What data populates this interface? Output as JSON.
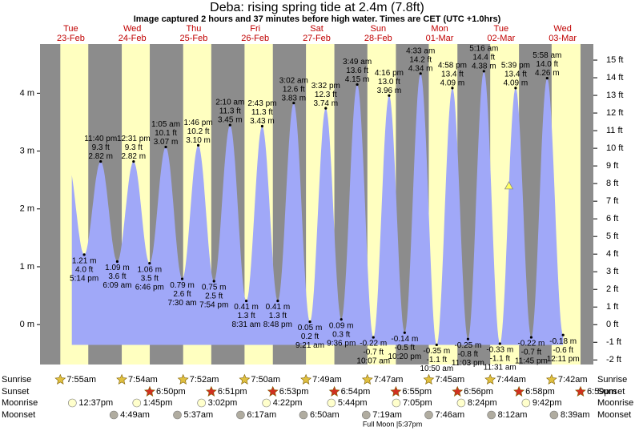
{
  "chart_data": {
    "type": "tide",
    "title": "Deba: rising  spring tide at 2.4m (7.8ft)",
    "subtitle": "Image captured 2 hours and 37 minutes before high water. Times are CET (UTC +1.0hrs)",
    "current_height": 2.4,
    "ylim": [
      -0.69,
      4.85
    ],
    "yticks": [
      {
        "value": 0,
        "label": "0 m"
      },
      {
        "value": 1,
        "label": "1 m"
      },
      {
        "value": 2,
        "label": "2 m"
      },
      {
        "value": 3,
        "label": "3 m"
      },
      {
        "value": 4,
        "label": "4 m"
      }
    ],
    "y2lim": [
      -2.26,
      15.91
    ],
    "y2ticks": [
      {
        "value": -2,
        "label": "-2 ft"
      },
      {
        "value": -1,
        "label": "-1 ft"
      },
      {
        "value": 0,
        "label": "0 ft"
      },
      {
        "value": 1,
        "label": "1 ft"
      },
      {
        "value": 2,
        "label": "2 ft"
      },
      {
        "value": 3,
        "label": "3 ft"
      },
      {
        "value": 4,
        "label": "4 ft"
      },
      {
        "value": 5,
        "label": "5 ft"
      },
      {
        "value": 6,
        "label": "6 ft"
      },
      {
        "value": 7,
        "label": "7 ft"
      },
      {
        "value": 8,
        "label": "8 ft"
      },
      {
        "value": 9,
        "label": "9 ft"
      },
      {
        "value": 10,
        "label": "10 ft"
      },
      {
        "value": 11,
        "label": "11 ft"
      },
      {
        "value": 12,
        "label": "12 ft"
      },
      {
        "value": 13,
        "label": "13 ft"
      },
      {
        "value": 14,
        "label": "14 ft"
      },
      {
        "value": 15,
        "label": "15 ft"
      }
    ],
    "colors": {
      "night": "#8c8c8c",
      "day": "#ffffc0",
      "tide": "#a0a8f8",
      "day_label": "#c00000"
    },
    "row_labels": {
      "sunrise": "Sunrise",
      "sunset": "Sunset",
      "moonrise": "Moonrise",
      "moonset": "Moonset"
    },
    "full_moon": "Full Moon |5:37pm",
    "days": [
      {
        "weekday": "Tue",
        "date": "23-Feb",
        "sunrise": "7:55am",
        "sunset": null,
        "moonrise": "12:37pm",
        "moonset": null,
        "tides": [
          {
            "time": "5:14 pm",
            "height": 1.21,
            "height_label": "1.21 m",
            "feet_label": "4.0 ft"
          },
          {
            "time": "11:40 pm",
            "height": 2.82,
            "height_label": "2.82 m",
            "feet_label": "9.3 ft"
          }
        ]
      },
      {
        "weekday": "Wed",
        "date": "24-Feb",
        "sunrise": "7:54am",
        "sunset": "6:50pm",
        "moonrise": "1:45pm",
        "moonset": "4:49am",
        "tides": [
          {
            "time": "6:09 am",
            "height": 1.09,
            "height_label": "1.09 m",
            "feet_label": "3.6 ft"
          },
          {
            "time": "12:31 pm",
            "height": 2.82,
            "height_label": "2.82 m",
            "feet_label": "9.3 ft"
          },
          {
            "time": "6:46 pm",
            "height": 1.06,
            "height_label": "1.06 m",
            "feet_label": "3.5 ft"
          }
        ]
      },
      {
        "weekday": "Thu",
        "date": "25-Feb",
        "sunrise": "7:52am",
        "sunset": "6:51pm",
        "moonrise": "3:02pm",
        "moonset": "5:37am",
        "tides": [
          {
            "time": "1:05 am",
            "height": 3.07,
            "height_label": "3.07 m",
            "feet_label": "10.1 ft"
          },
          {
            "time": "7:30 am",
            "height": 0.79,
            "height_label": "0.79 m",
            "feet_label": "2.6 ft"
          },
          {
            "time": "1:46 pm",
            "height": 3.1,
            "height_label": "3.10 m",
            "feet_label": "10.2 ft"
          },
          {
            "time": "7:54 pm",
            "height": 0.75,
            "height_label": "0.75 m",
            "feet_label": "2.5 ft"
          }
        ]
      },
      {
        "weekday": "Fri",
        "date": "26-Feb",
        "sunrise": "7:50am",
        "sunset": "6:53pm",
        "moonrise": "4:22pm",
        "moonset": "6:17am",
        "tides": [
          {
            "time": "2:10 am",
            "height": 3.45,
            "height_label": "3.45 m",
            "feet_label": "11.3 ft"
          },
          {
            "time": "8:31 am",
            "height": 0.41,
            "height_label": "0.41 m",
            "feet_label": "1.3 ft"
          },
          {
            "time": "2:43 pm",
            "height": 3.43,
            "height_label": "3.43 m",
            "feet_label": "11.3 ft"
          },
          {
            "time": "8:48 pm",
            "height": 0.41,
            "height_label": "0.41 m",
            "feet_label": "1.3 ft"
          }
        ]
      },
      {
        "weekday": "Sat",
        "date": "27-Feb",
        "sunrise": "7:49am",
        "sunset": "6:54pm",
        "moonrise": "5:44pm",
        "moonset": "6:50am",
        "tides": [
          {
            "time": "3:02 am",
            "height": 3.83,
            "height_label": "3.83 m",
            "feet_label": "12.6 ft"
          },
          {
            "time": "9:21 am",
            "height": 0.05,
            "height_label": "0.05 m",
            "feet_label": "0.2 ft"
          },
          {
            "time": "3:32 pm",
            "height": 3.74,
            "height_label": "3.74 m",
            "feet_label": "12.3 ft"
          },
          {
            "time": "9:36 pm",
            "height": 0.09,
            "height_label": "0.09 m",
            "feet_label": "0.3 ft"
          }
        ]
      },
      {
        "weekday": "Sun",
        "date": "28-Feb",
        "sunrise": "7:47am",
        "sunset": "6:55pm",
        "moonrise": "7:05pm",
        "moonset": "7:19am",
        "tides": [
          {
            "time": "3:49 am",
            "height": 4.15,
            "height_label": "4.15 m",
            "feet_label": "13.6 ft"
          },
          {
            "time": "10:07 am",
            "height": -0.22,
            "height_label": "-0.22 m",
            "feet_label": "-0.7 ft"
          },
          {
            "time": "4:16 pm",
            "height": 3.96,
            "height_label": "3.96 m",
            "feet_label": "13.0 ft"
          },
          {
            "time": "10:20 pm",
            "height": -0.14,
            "height_label": "-0.14 m",
            "feet_label": "-0.5 ft"
          }
        ]
      },
      {
        "weekday": "Mon",
        "date": "01-Mar",
        "sunrise": "7:45am",
        "sunset": "6:56pm",
        "moonrise": "8:24pm",
        "moonset": "7:46am",
        "tides": [
          {
            "time": "4:33 am",
            "height": 4.34,
            "height_label": "4.34 m",
            "feet_label": "14.2 ft"
          },
          {
            "time": "10:50 am",
            "height": -0.35,
            "height_label": "-0.35 m",
            "feet_label": "-1.1 ft"
          },
          {
            "time": "4:58 pm",
            "height": 4.09,
            "height_label": "4.09 m",
            "feet_label": "13.4 ft"
          },
          {
            "time": "11:03 pm",
            "height": -0.25,
            "height_label": "-0.25 m",
            "feet_label": "-0.8 ft"
          }
        ]
      },
      {
        "weekday": "Tue",
        "date": "02-Mar",
        "sunrise": "7:44am",
        "sunset": "6:58pm",
        "moonrise": "9:42pm",
        "moonset": "8:12am",
        "tides": [
          {
            "time": "5:16 am",
            "height": 4.38,
            "height_label": "4.38 m",
            "feet_label": "14.4 ft"
          },
          {
            "time": "11:31 am",
            "height": -0.33,
            "height_label": "-0.33 m",
            "feet_label": "-1.1 ft"
          },
          {
            "time": "5:39 pm",
            "height": 4.09,
            "height_label": "4.09 m",
            "feet_label": "13.4 ft"
          },
          {
            "time": "11:45 pm",
            "height": -0.22,
            "height_label": "-0.22 m",
            "feet_label": "-0.7 ft"
          }
        ]
      },
      {
        "weekday": "Wed",
        "date": "03-Mar",
        "sunrise": "7:42am",
        "sunset": "6:59pm",
        "moonrise": null,
        "moonset": "8:39am",
        "tides": [
          {
            "time": "5:58 am",
            "height": 4.26,
            "height_label": "4.26 m",
            "feet_label": "14.0 ft"
          },
          {
            "time": "12:11 pm",
            "height": -0.18,
            "height_label": "-0.18 m",
            "feet_label": "-0.6 ft"
          }
        ]
      }
    ]
  }
}
